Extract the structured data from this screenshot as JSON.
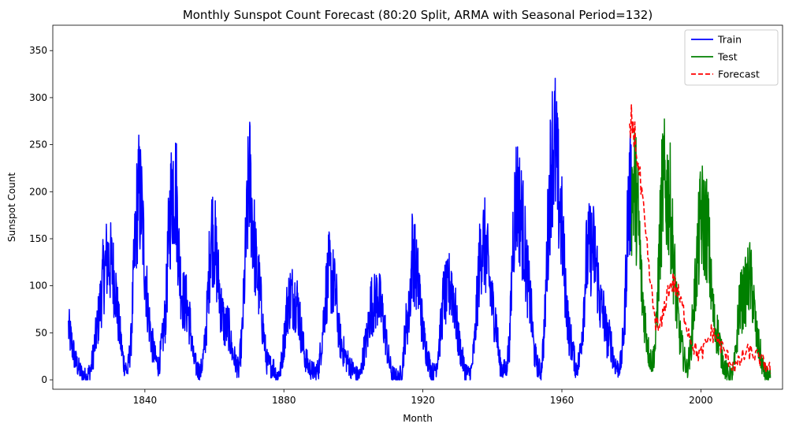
{
  "chart_data": {
    "type": "line",
    "title": "Monthly Sunspot Count Forecast (80:20 Split, ARMA with Seasonal Period=132)",
    "xlabel": "Month",
    "ylabel": "Sunspot Count",
    "xlim": [
      1813.5,
      2023.5
    ],
    "ylim": [
      -10,
      377
    ],
    "x_ticks": [
      1840,
      1880,
      1920,
      1960,
      2000
    ],
    "x_tick_labels": [
      "1840",
      "1880",
      "1920",
      "1960",
      "2000"
    ],
    "y_ticks": [
      0,
      50,
      100,
      150,
      200,
      250,
      300,
      350
    ],
    "y_tick_labels": [
      "0",
      "50",
      "100",
      "150",
      "200",
      "250",
      "300",
      "350"
    ],
    "grid": false,
    "legend_position": "top-right",
    "series": [
      {
        "name": "Train",
        "color": "#0000ff",
        "style": "solid",
        "x": [
          1818.0,
          1819.0,
          1820.0,
          1821.0,
          1822.0,
          1823.2,
          1824.5,
          1826.0,
          1827.0,
          1828.0,
          1829.2,
          1830.5,
          1831.5,
          1832.5,
          1833.8,
          1835.0,
          1836.0,
          1837.0,
          1838.0,
          1839.0,
          1840.0,
          1841.0,
          1842.0,
          1843.0,
          1844.0,
          1845.0,
          1846.0,
          1847.0,
          1848.0,
          1849.0,
          1850.0,
          1851.0,
          1852.0,
          1853.0,
          1854.0,
          1855.0,
          1856.0,
          1857.0,
          1858.0,
          1859.0,
          1860.0,
          1861.0,
          1862.0,
          1863.0,
          1864.0,
          1865.0,
          1866.0,
          1867.0,
          1868.0,
          1869.0,
          1870.0,
          1871.0,
          1872.0,
          1873.0,
          1874.0,
          1875.0,
          1876.0,
          1877.0,
          1878.0,
          1879.0,
          1880.0,
          1881.0,
          1882.0,
          1883.0,
          1884.0,
          1885.0,
          1886.0,
          1887.0,
          1888.0,
          1889.0,
          1890.0,
          1891.0,
          1892.0,
          1893.0,
          1894.0,
          1895.0,
          1896.0,
          1897.0,
          1898.0,
          1899.0,
          1900.0,
          1901.0,
          1902.0,
          1903.0,
          1904.0,
          1905.0,
          1906.0,
          1907.0,
          1908.0,
          1909.0,
          1910.0,
          1911.0,
          1912.0,
          1913.0,
          1914.0,
          1915.0,
          1916.0,
          1917.0,
          1918.0,
          1919.0,
          1920.0,
          1921.0,
          1922.0,
          1923.0,
          1924.0,
          1925.0,
          1926.0,
          1927.0,
          1928.0,
          1929.0,
          1930.0,
          1931.0,
          1932.0,
          1933.0,
          1934.0,
          1935.0,
          1936.0,
          1937.0,
          1938.0,
          1939.0,
          1940.0,
          1941.0,
          1942.0,
          1943.0,
          1944.0,
          1945.0,
          1946.0,
          1947.0,
          1948.0,
          1949.0,
          1950.0,
          1951.0,
          1952.0,
          1953.0,
          1954.0,
          1955.0,
          1956.0,
          1957.0,
          1958.0,
          1959.0,
          1960.0,
          1961.0,
          1962.0,
          1963.0,
          1964.0,
          1965.0,
          1966.0,
          1967.0,
          1968.0,
          1969.0,
          1970.0,
          1971.0,
          1972.0,
          1973.0,
          1974.0,
          1975.0,
          1976.0,
          1977.0,
          1978.0,
          1979.0,
          1980.0
        ],
        "y": [
          55,
          38,
          20,
          12,
          6,
          3,
          12,
          48,
          75,
          110,
          130,
          120,
          100,
          58,
          20,
          8,
          40,
          130,
          200,
          185,
          120,
          70,
          40,
          22,
          15,
          40,
          72,
          165,
          210,
          200,
          115,
          85,
          80,
          60,
          22,
          12,
          8,
          28,
          75,
          160,
          150,
          110,
          75,
          55,
          58,
          32,
          20,
          10,
          48,
          135,
          220,
          170,
          120,
          95,
          55,
          20,
          15,
          14,
          4,
          10,
          40,
          80,
          90,
          88,
          80,
          50,
          25,
          15,
          10,
          8,
          12,
          45,
          90,
          115,
          105,
          88,
          45,
          32,
          22,
          15,
          10,
          5,
          5,
          30,
          45,
          80,
          80,
          90,
          75,
          55,
          26,
          7,
          4,
          2,
          10,
          55,
          70,
          140,
          115,
          95,
          50,
          32,
          15,
          6,
          18,
          48,
          90,
          90,
          105,
          85,
          48,
          28,
          12,
          6,
          10,
          45,
          110,
          150,
          140,
          110,
          78,
          64,
          20,
          10,
          12,
          42,
          160,
          200,
          180,
          155,
          110,
          80,
          30,
          15,
          8,
          55,
          160,
          240,
          250,
          200,
          160,
          100,
          50,
          35,
          12,
          20,
          60,
          125,
          140,
          140,
          120,
          80,
          70,
          45,
          42,
          20,
          12,
          18,
          60,
          180,
          200
        ]
      },
      {
        "name": "Test",
        "color": "#008000",
        "style": "solid",
        "x": [
          1980.0,
          1981.0,
          1982.0,
          1983.0,
          1984.0,
          1985.0,
          1986.0,
          1987.0,
          1988.0,
          1989.0,
          1990.0,
          1991.0,
          1992.0,
          1993.0,
          1994.0,
          1995.0,
          1996.0,
          1997.0,
          1998.0,
          1999.0,
          2000.0,
          2001.0,
          2002.0,
          2003.0,
          2004.0,
          2005.0,
          2006.0,
          2007.0,
          2008.0,
          2009.0,
          2010.0,
          2011.0,
          2012.0,
          2013.0,
          2014.0,
          2015.0,
          2016.0,
          2017.0,
          2018.0,
          2019.0,
          2020.0
        ],
        "y": [
          200,
          205,
          170,
          95,
          60,
          28,
          18,
          40,
          130,
          210,
          200,
          195,
          135,
          80,
          45,
          25,
          12,
          30,
          80,
          130,
          175,
          165,
          160,
          95,
          55,
          48,
          25,
          12,
          5,
          5,
          25,
          80,
          85,
          95,
          110,
          90,
          45,
          30,
          10,
          5,
          2
        ]
      },
      {
        "name": "Forecast",
        "color": "#ff0000",
        "style": "dashed",
        "x": [
          1979.5,
          1980.0,
          1980.5,
          1981.0,
          1981.5,
          1982.0,
          1983.0,
          1984.0,
          1985.0,
          1986.0,
          1987.0,
          1988.0,
          1989.0,
          1990.0,
          1991.0,
          1992.0,
          1993.0,
          1994.0,
          1995.0,
          1996.0,
          1997.0,
          1998.0,
          1999.0,
          2000.0,
          2001.0,
          2002.0,
          2003.0,
          2004.0,
          2005.0,
          2006.0,
          2007.0,
          2008.0,
          2009.0,
          2010.0,
          2011.0,
          2012.0,
          2013.0,
          2014.0,
          2015.0,
          2016.0,
          2017.0,
          2018.0,
          2019.0,
          2020.0
        ],
        "y": [
          255,
          275,
          270,
          260,
          245,
          225,
          195,
          155,
          120,
          85,
          62,
          52,
          65,
          88,
          100,
          104,
          96,
          85,
          72,
          58,
          45,
          35,
          28,
          27,
          33,
          42,
          50,
          48,
          42,
          35,
          27,
          22,
          17,
          14,
          18,
          24,
          28,
          30,
          27,
          25,
          22,
          18,
          15,
          11
        ]
      }
    ]
  }
}
